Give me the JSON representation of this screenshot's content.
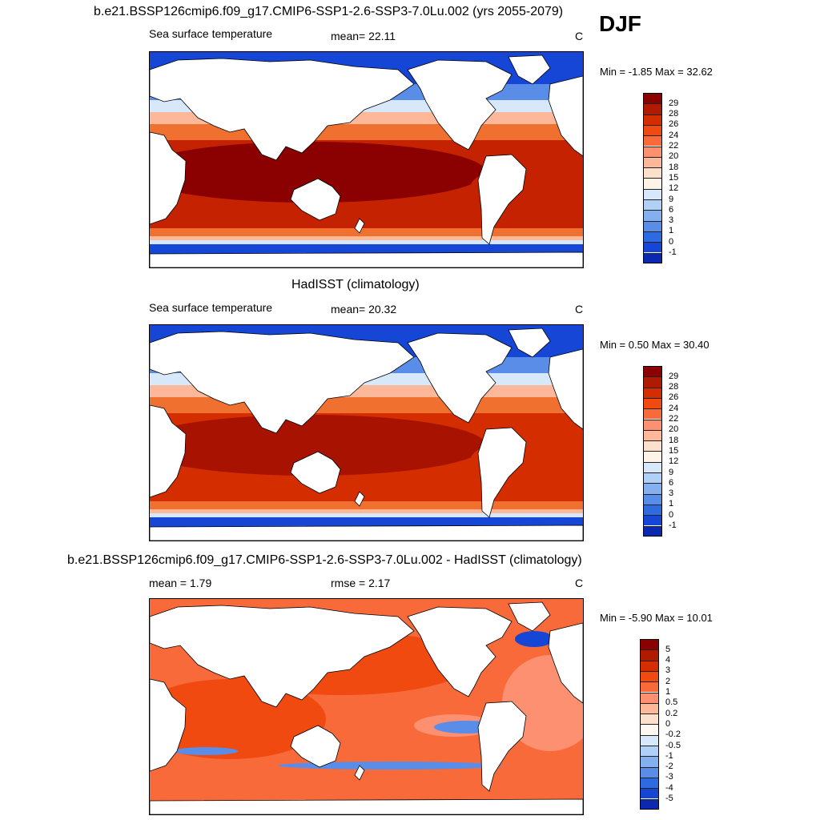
{
  "season": "DJF",
  "panels": [
    {
      "title": "b.e21.BSSP126cmip6.f09_g17.CMIP6-SSP1-2.6-SSP3-7.0Lu.002 (yrs 2055-2079)",
      "left_label": "Sea surface temperature",
      "center_label": "mean=  22.11",
      "units": "C",
      "minmax": "Min =  -1.85 Max =  32.62",
      "colorbar": {
        "labels": [
          "29",
          "28",
          "26",
          "24",
          "22",
          "20",
          "18",
          "15",
          "12",
          "9",
          "6",
          "3",
          "1",
          "0",
          "-1"
        ],
        "colors": [
          "#8b0000",
          "#b01a00",
          "#d42d00",
          "#f04a10",
          "#f86a3a",
          "#fc9070",
          "#fdb89a",
          "#fde0cc",
          "#fff2e6",
          "#d8e8fb",
          "#b0d0f8",
          "#85b0f0",
          "#5a8de8",
          "#2e6ae0",
          "#1546d6",
          "#0a28b0"
        ]
      },
      "map": {
        "colors": [
          "#8b0000",
          "#c42200",
          "#f07030",
          "#fdb89a",
          "#d8e8fb",
          "#5a8de8",
          "#1546d6"
        ]
      }
    },
    {
      "title": "HadISST (climatology)",
      "left_label": "Sea surface temperature",
      "center_label": "mean=  20.32",
      "units": "C",
      "minmax": "Min =   0.50 Max =  30.40",
      "colorbar": {
        "labels": [
          "29",
          "28",
          "26",
          "24",
          "22",
          "20",
          "18",
          "15",
          "12",
          "9",
          "6",
          "3",
          "1",
          "0",
          "-1"
        ],
        "colors": [
          "#8b0000",
          "#b01a00",
          "#d42d00",
          "#f04a10",
          "#f86a3a",
          "#fc9070",
          "#fdb89a",
          "#fde0cc",
          "#fff2e6",
          "#d8e8fb",
          "#b0d0f8",
          "#85b0f0",
          "#5a8de8",
          "#2e6ae0",
          "#1546d6",
          "#0a28b0"
        ]
      },
      "map": {
        "colors": [
          "#a81200",
          "#d42d00",
          "#f07030",
          "#fdb89a",
          "#d8e8fb",
          "#5a8de8",
          "#1546d6"
        ]
      }
    },
    {
      "title": "b.e21.BSSP126cmip6.f09_g17.CMIP6-SSP1-2.6-SSP3-7.0Lu.002 - HadISST (climatology)",
      "left_label": "mean =   1.79",
      "center_label": "rmse =   2.17",
      "units": "C",
      "minmax": "Min =  -5.90 Max =  10.01",
      "colorbar": {
        "labels": [
          "5",
          "4",
          "3",
          "2",
          "1",
          "0.5",
          "0.2",
          "0",
          "-0.2",
          "-0.5",
          "-1",
          "-2",
          "-3",
          "-4",
          "-5"
        ],
        "colors": [
          "#8b0000",
          "#b01a00",
          "#d42d00",
          "#f04a10",
          "#f86a3a",
          "#fc9070",
          "#fdb89a",
          "#fde0cc",
          "#fff8f0",
          "#d8e8fb",
          "#b0d0f8",
          "#85b0f0",
          "#5a8de8",
          "#2e6ae0",
          "#1546d6",
          "#0a28b0"
        ]
      },
      "map": {
        "colors": [
          "#f04a10",
          "#f86a3a",
          "#fc9070",
          "#5a8de8",
          "#1546d6"
        ]
      }
    }
  ]
}
